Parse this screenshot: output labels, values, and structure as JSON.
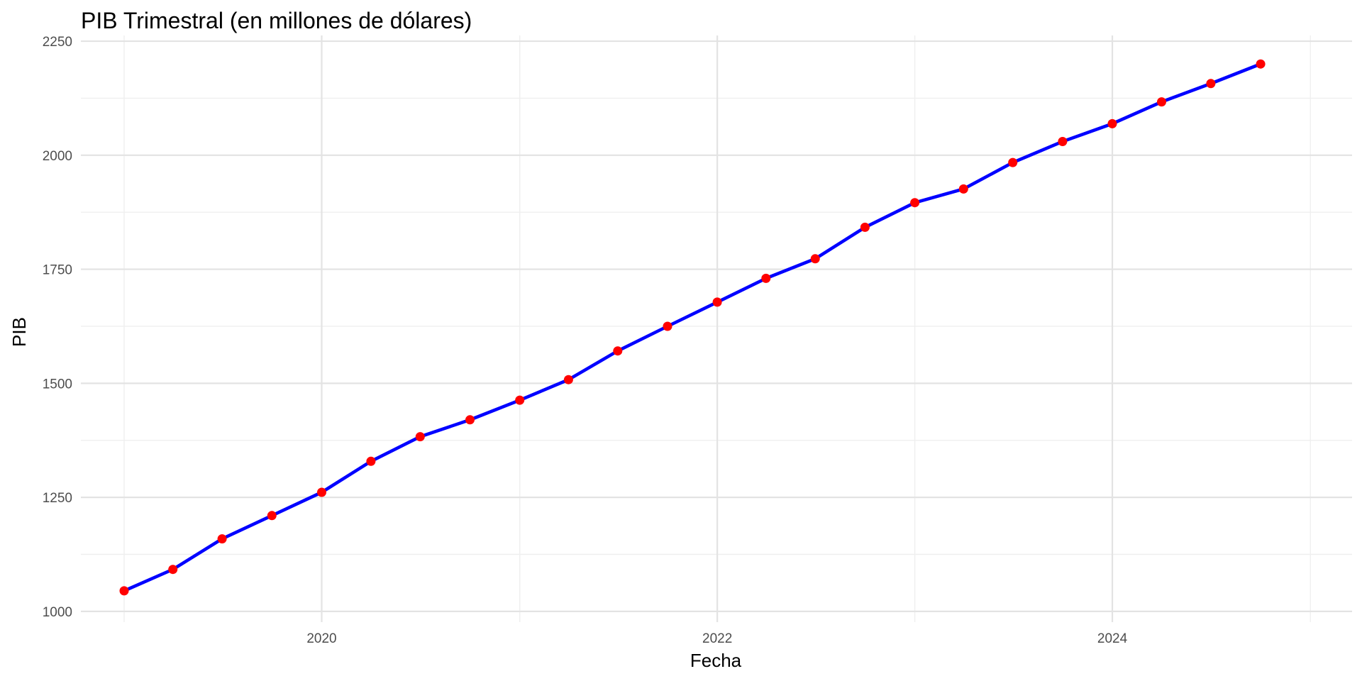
{
  "chart_data": {
    "type": "line",
    "title": "PIB Trimestral (en millones de dólares)",
    "xlabel": "Fecha",
    "ylabel": "PIB",
    "x_ticks": [
      "2020",
      "2022",
      "2024"
    ],
    "y_ticks": [
      1000,
      1250,
      1500,
      1750,
      2000,
      2250
    ],
    "xlim": [
      "2018-10-13",
      "2025-03-19"
    ],
    "ylim": [
      1000,
      2250
    ],
    "grid": true,
    "legend": "none",
    "line_color": "#0000ff",
    "point_color": "#ff0000",
    "series": [
      {
        "x": [
          "2019-01-01",
          "2019-04-01",
          "2019-07-01",
          "2019-10-01",
          "2020-01-01",
          "2020-04-01",
          "2020-07-01",
          "2020-10-01",
          "2021-01-01",
          "2021-04-01",
          "2021-07-01",
          "2021-10-01",
          "2022-01-01",
          "2022-04-01",
          "2022-07-01",
          "2022-10-01",
          "2023-01-01",
          "2023-04-01",
          "2023-07-01",
          "2023-10-01",
          "2024-01-01",
          "2024-04-01",
          "2024-07-01",
          "2024-10-01"
        ],
        "values": [
          1045,
          1092,
          1159,
          1210,
          1261,
          1329,
          1383,
          1420,
          1463,
          1508,
          1571,
          1625,
          1678,
          1730,
          1773,
          1842,
          1896,
          1926,
          1984,
          2030,
          2069,
          2117,
          2157,
          2200
        ]
      }
    ]
  }
}
